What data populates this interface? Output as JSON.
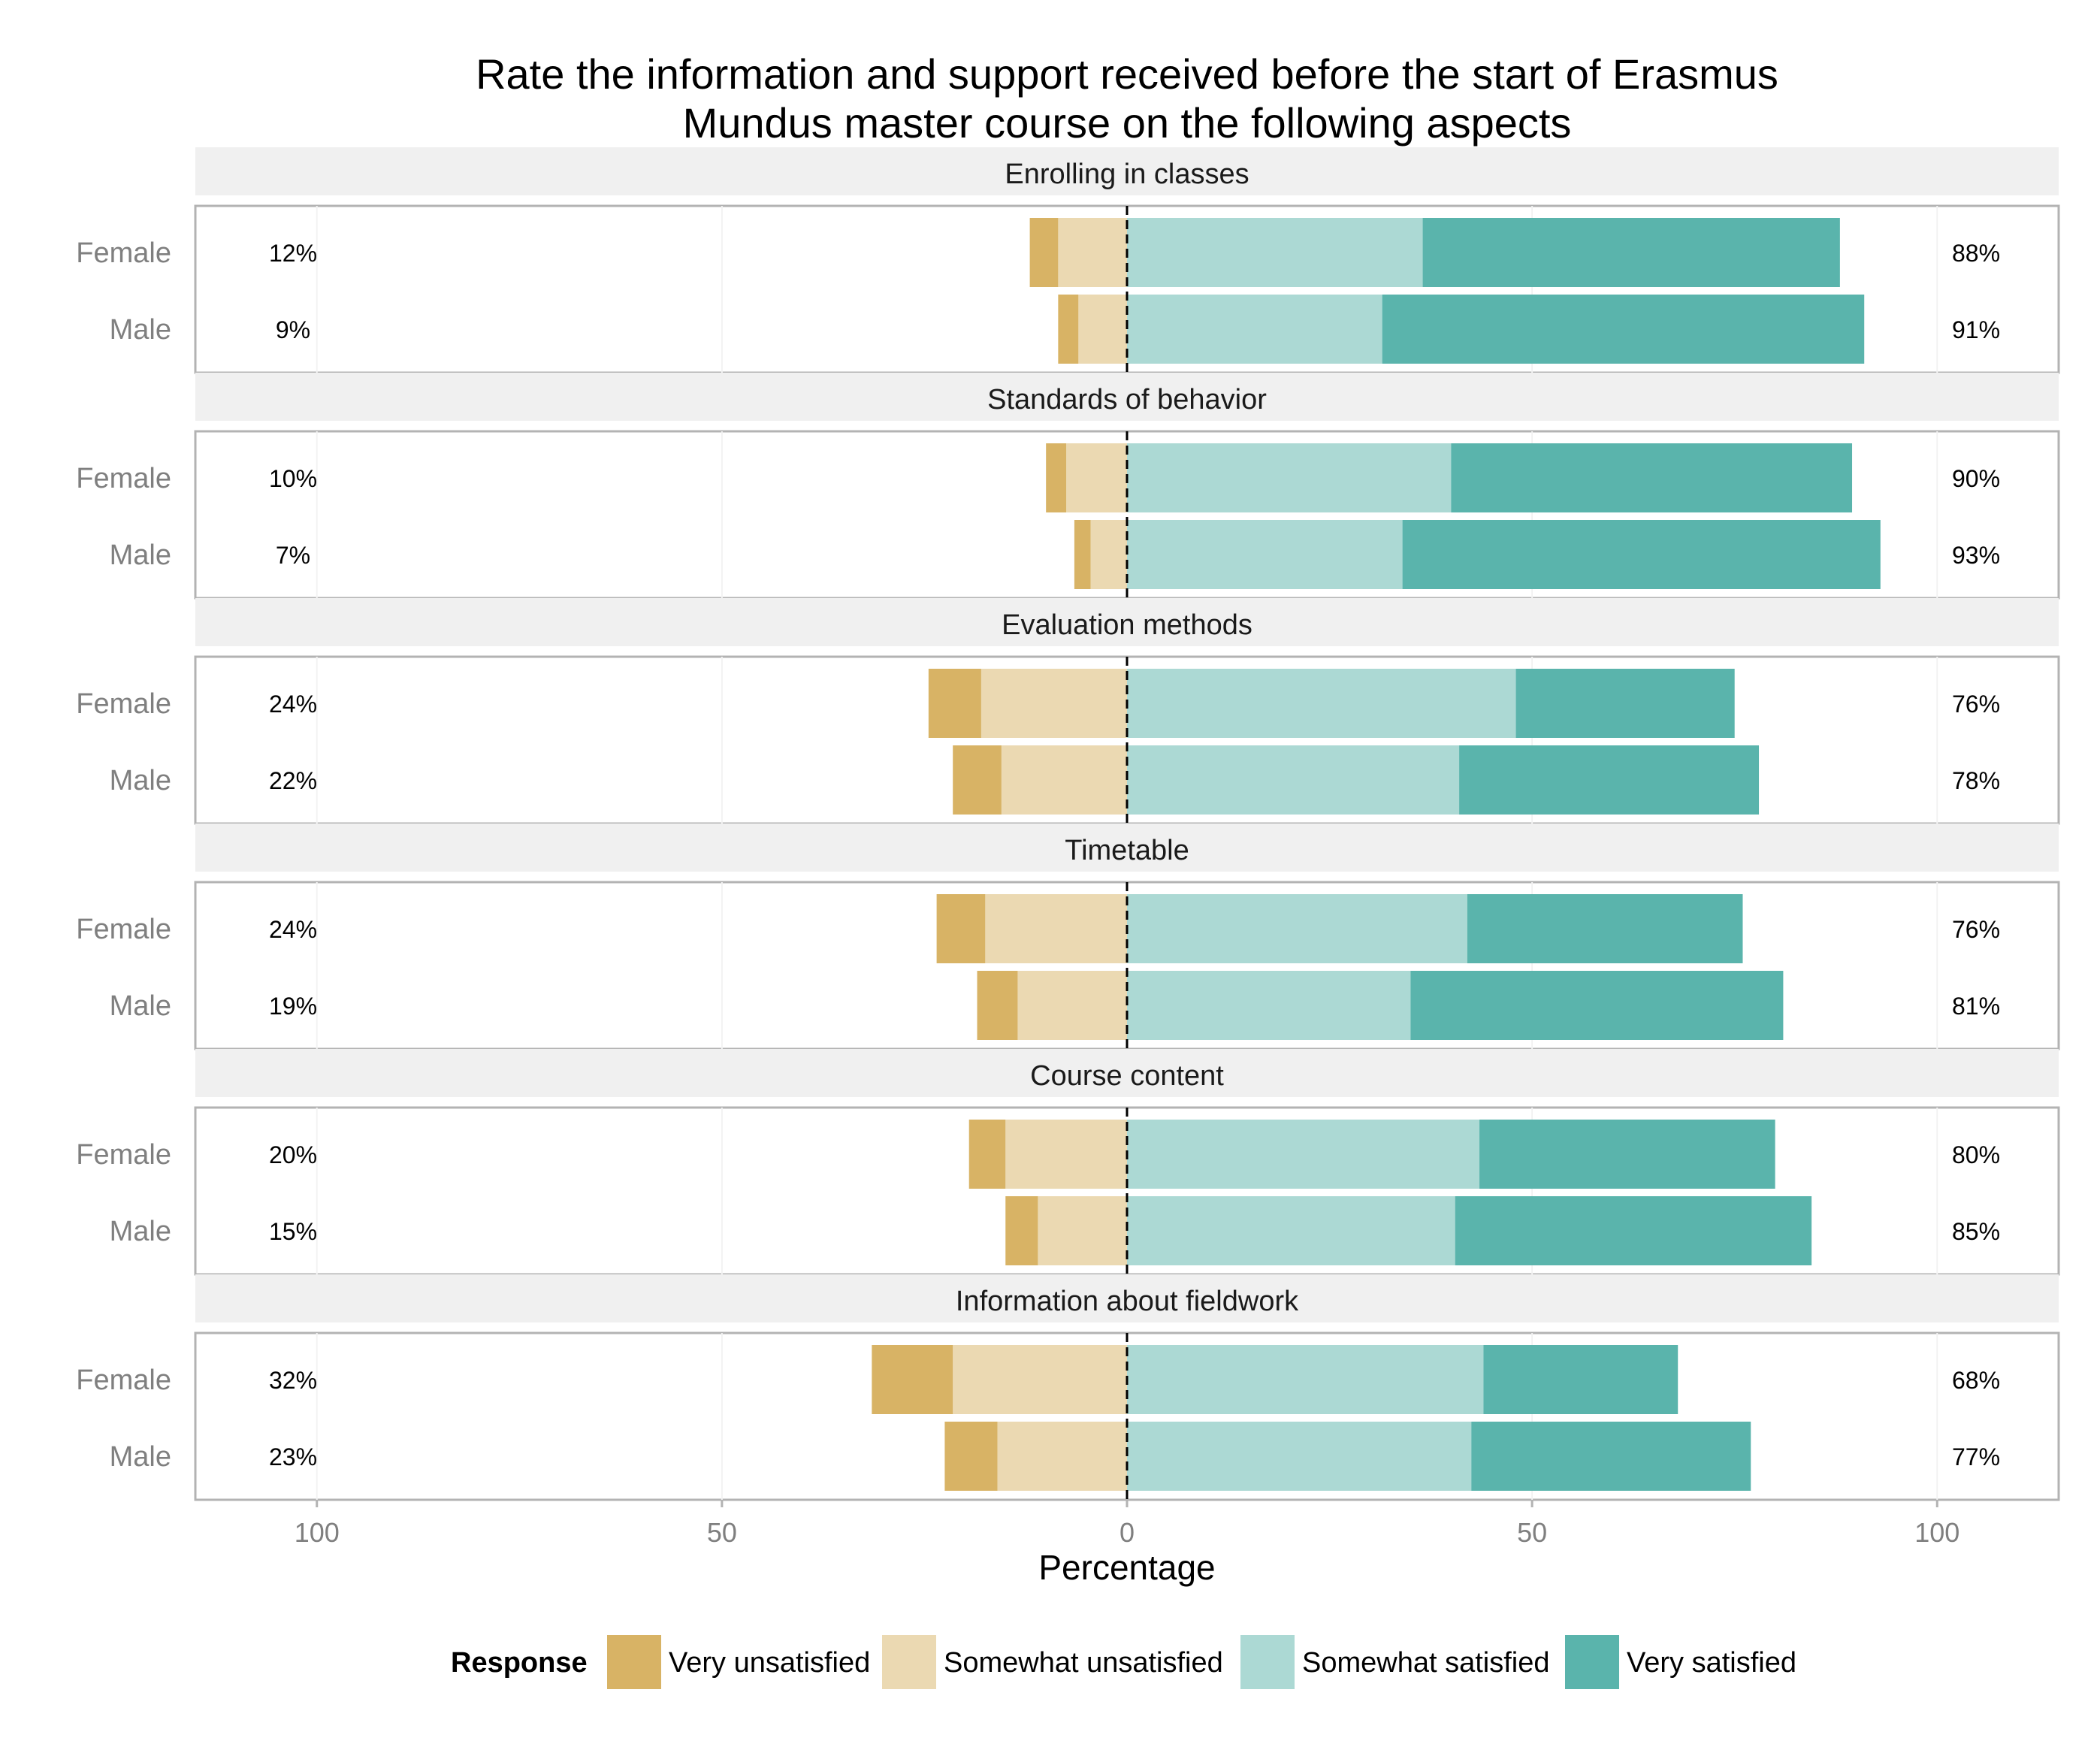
{
  "chart_data": {
    "type": "bar",
    "subtype": "diverging-stacked-horizontal",
    "title_lines": [
      "Rate the information and support received before the start of Erasmus",
      "Mundus master course on the following aspects"
    ],
    "xlabel": "Percentage",
    "x_ticks": [
      {
        "value": -100,
        "label": "100"
      },
      {
        "value": -50,
        "label": "50"
      },
      {
        "value": 0,
        "label": "0"
      },
      {
        "value": 50,
        "label": "50"
      },
      {
        "value": 100,
        "label": "100"
      }
    ],
    "xlim": [
      -115,
      115
    ],
    "legend": {
      "title": "Response",
      "position": "bottom",
      "entries": [
        {
          "name": "Very unsatisfied",
          "color": "#d8b365"
        },
        {
          "name": "Somewhat unsatisfied",
          "color": "#ebd9b2"
        },
        {
          "name": "Somewhat satisfied",
          "color": "#acd9d4"
        },
        {
          "name": "Very satisfied",
          "color": "#5ab4ac"
        }
      ]
    },
    "panels": [
      {
        "title": "Enrolling in classes",
        "rows": [
          {
            "group": "Female",
            "very_unsatisfied": 3.5,
            "somewhat_unsatisfied": 8.5,
            "somewhat_satisfied": 36.5,
            "very_satisfied": 51.5,
            "neg_label": "12%",
            "pos_label": "88%"
          },
          {
            "group": "Male",
            "very_unsatisfied": 2.5,
            "somewhat_unsatisfied": 6.0,
            "somewhat_satisfied": 31.5,
            "very_satisfied": 59.5,
            "neg_label": "9%",
            "pos_label": "91%"
          }
        ]
      },
      {
        "title": "Standards of behavior",
        "rows": [
          {
            "group": "Female",
            "very_unsatisfied": 2.5,
            "somewhat_unsatisfied": 7.5,
            "somewhat_satisfied": 40.0,
            "very_satisfied": 49.5,
            "neg_label": "10%",
            "pos_label": "90%"
          },
          {
            "group": "Male",
            "very_unsatisfied": 2.0,
            "somewhat_unsatisfied": 4.5,
            "somewhat_satisfied": 34.0,
            "very_satisfied": 59.0,
            "neg_label": "7%",
            "pos_label": "93%"
          }
        ]
      },
      {
        "title": "Evaluation methods",
        "rows": [
          {
            "group": "Female",
            "very_unsatisfied": 6.5,
            "somewhat_unsatisfied": 18.0,
            "somewhat_satisfied": 48.0,
            "very_satisfied": 27.0,
            "neg_label": "24%",
            "pos_label": "76%"
          },
          {
            "group": "Male",
            "very_unsatisfied": 6.0,
            "somewhat_unsatisfied": 15.5,
            "somewhat_satisfied": 41.0,
            "very_satisfied": 37.0,
            "neg_label": "22%",
            "pos_label": "78%"
          }
        ]
      },
      {
        "title": "Timetable",
        "rows": [
          {
            "group": "Female",
            "very_unsatisfied": 6.0,
            "somewhat_unsatisfied": 17.5,
            "somewhat_satisfied": 42.0,
            "very_satisfied": 34.0,
            "neg_label": "24%",
            "pos_label": "76%"
          },
          {
            "group": "Male",
            "very_unsatisfied": 5.0,
            "somewhat_unsatisfied": 13.5,
            "somewhat_satisfied": 35.0,
            "very_satisfied": 46.0,
            "neg_label": "19%",
            "pos_label": "81%"
          }
        ]
      },
      {
        "title": "Course content",
        "rows": [
          {
            "group": "Female",
            "very_unsatisfied": 4.5,
            "somewhat_unsatisfied": 15.0,
            "somewhat_satisfied": 43.5,
            "very_satisfied": 36.5,
            "neg_label": "20%",
            "pos_label": "80%"
          },
          {
            "group": "Male",
            "very_unsatisfied": 4.0,
            "somewhat_unsatisfied": 11.0,
            "somewhat_satisfied": 40.5,
            "very_satisfied": 44.0,
            "neg_label": "15%",
            "pos_label": "85%"
          }
        ]
      },
      {
        "title": "Information about fieldwork",
        "rows": [
          {
            "group": "Female",
            "very_unsatisfied": 10.0,
            "somewhat_unsatisfied": 21.5,
            "somewhat_satisfied": 44.0,
            "very_satisfied": 24.0,
            "neg_label": "32%",
            "pos_label": "68%"
          },
          {
            "group": "Male",
            "very_unsatisfied": 6.5,
            "somewhat_unsatisfied": 16.0,
            "somewhat_satisfied": 42.5,
            "very_satisfied": 34.5,
            "neg_label": "23%",
            "pos_label": "77%"
          }
        ]
      }
    ]
  }
}
